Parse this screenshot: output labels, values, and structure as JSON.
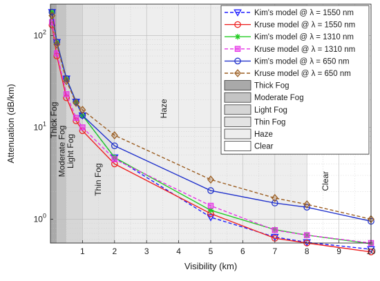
{
  "chart_data": {
    "type": "line",
    "xlabel": "Visibility (km)",
    "ylabel": "Attenuation (dB/km)",
    "y_scale": "log",
    "xlim": [
      0,
      10
    ],
    "ylim": [
      0.55,
      220
    ],
    "x_ticks": [
      1,
      2,
      3,
      4,
      5,
      6,
      7,
      8,
      9,
      10
    ],
    "y_ticks": [
      1,
      10,
      100
    ],
    "y_tick_labels": [
      "10^0",
      "10^1",
      "10^2"
    ],
    "grid": true,
    "legend_position": "top-right",
    "regions": [
      {
        "name": "Thick Fog",
        "x": [
          0,
          0.2
        ],
        "color": "#a9a9a9"
      },
      {
        "name": "Moderate Fog",
        "x": [
          0.2,
          0.5
        ],
        "color": "#c4c4c4"
      },
      {
        "name": "Light Fog",
        "x": [
          0.5,
          1.0
        ],
        "color": "#d6d6d6"
      },
      {
        "name": "Thin Fog",
        "x": [
          1.0,
          2.0
        ],
        "color": "#e3e3e3"
      },
      {
        "name": "Haze",
        "x": [
          2.0,
          8.0
        ],
        "color": "#eeeeee"
      },
      {
        "name": "Clear",
        "x": [
          8.0,
          10.0
        ],
        "color": "#ffffff"
      }
    ],
    "region_annotations": [
      {
        "text": "Thick Fog",
        "x": 0.13,
        "y": 12
      },
      {
        "text": "Moderate Fog",
        "x": 0.37,
        "y": 5.5
      },
      {
        "text": "Light Fog",
        "x": 0.64,
        "y": 5.5
      },
      {
        "text": "Thin Fog",
        "x": 1.5,
        "y": 2.7
      },
      {
        "text": "Haze",
        "x": 3.55,
        "y": 16
      },
      {
        "text": "Clear",
        "x": 8.6,
        "y": 2.6
      }
    ],
    "series": [
      {
        "name": "Kim's model @ λ = 1550 nm",
        "color": "#1a1aff",
        "dash": "5 3",
        "marker": "triangle-down",
        "x": [
          0.05,
          0.2,
          0.5,
          0.8,
          1,
          2,
          5,
          7,
          8,
          10
        ],
        "y": [
          180,
          85,
          34,
          19,
          13.5,
          4.7,
          1.05,
          0.64,
          0.56,
          0.47
        ]
      },
      {
        "name": "Kruse model @ λ = 1550 nm",
        "color": "#ee2222",
        "dash": "",
        "marker": "circle",
        "x": [
          0.05,
          0.2,
          0.5,
          0.8,
          1,
          2,
          5,
          7,
          8,
          10
        ],
        "y": [
          130,
          60,
          21,
          11.8,
          9.2,
          4.0,
          1.15,
          0.62,
          0.55,
          0.44
        ]
      },
      {
        "name": "Kim's model @ λ = 1310 nm",
        "color": "#22cc22",
        "dash": "",
        "marker": "asterisk",
        "x": [
          0.05,
          0.2,
          0.5,
          0.8,
          1,
          2,
          5,
          7,
          8,
          10
        ],
        "y": [
          180,
          85,
          34,
          19,
          13.5,
          4.7,
          1.25,
          0.77,
          0.67,
          0.54
        ]
      },
      {
        "name": "Kruse model @ λ = 1310 nm",
        "color": "#e633e6",
        "dash": "5 3",
        "marker": "square",
        "x": [
          0.05,
          0.2,
          0.5,
          0.8,
          1,
          2,
          5,
          7,
          8,
          10
        ],
        "y": [
          140,
          64,
          23,
          12.7,
          10,
          4.5,
          1.4,
          0.76,
          0.67,
          0.55
        ]
      },
      {
        "name": "Kim's model @ λ = 650 nm",
        "color": "#2233cc",
        "dash": "",
        "marker": "circle",
        "x": [
          0.05,
          0.2,
          0.5,
          0.8,
          1,
          2,
          5,
          7,
          8,
          10
        ],
        "y": [
          180,
          85,
          34,
          19,
          13.5,
          6.3,
          2.05,
          1.5,
          1.35,
          0.95
        ]
      },
      {
        "name": "Kruse model @ λ = 650 nm",
        "color": "#9a5c1f",
        "dash": "5 3",
        "marker": "diamond",
        "x": [
          0.05,
          0.2,
          0.5,
          0.8,
          1,
          2,
          5,
          7,
          8,
          10
        ],
        "y": [
          165,
          80,
          32,
          18.5,
          15.5,
          8.2,
          2.7,
          1.7,
          1.45,
          1.0
        ]
      }
    ]
  }
}
